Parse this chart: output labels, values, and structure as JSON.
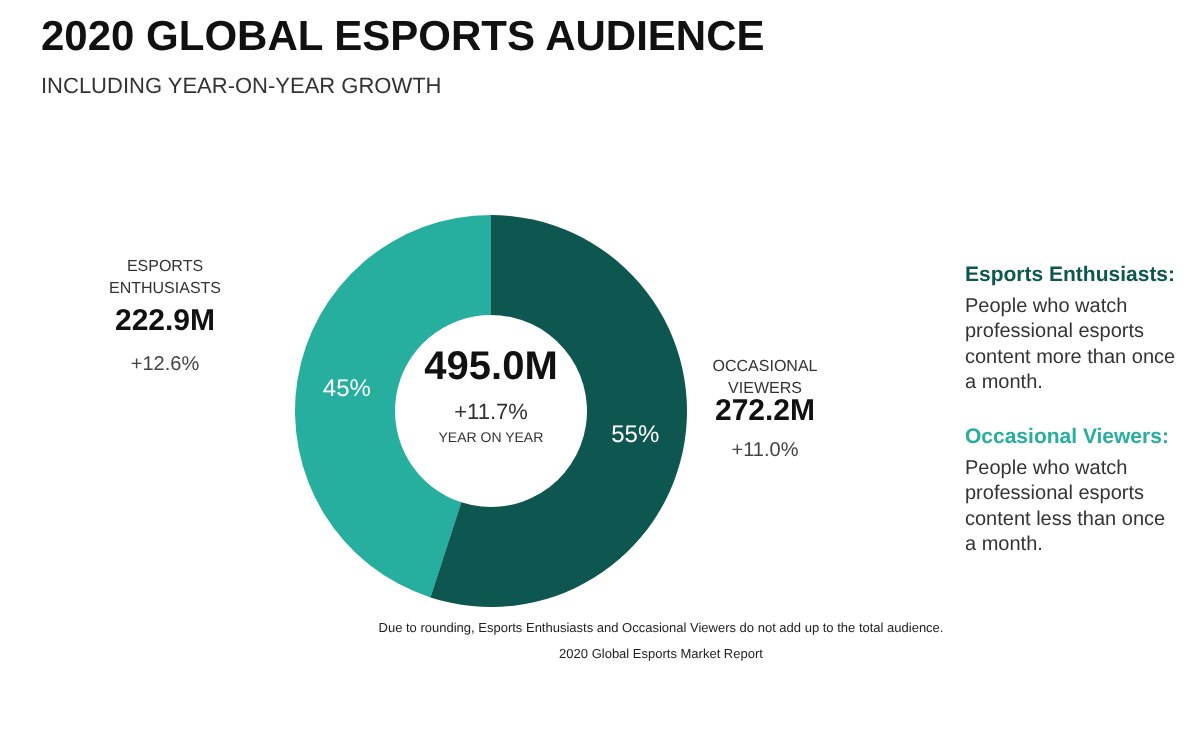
{
  "chart_data": {
    "type": "donut",
    "title": "2020 GLOBAL ESPORTS AUDIENCE",
    "subtitle": "INCLUDING YEAR-ON-YEAR GROWTH",
    "categories": [
      "ESPORTS ENTHUSIASTS",
      "OCCASIONAL VIEWERS"
    ],
    "values": [
      45,
      55
    ],
    "colors": [
      "#26ae9e",
      "#0e5750"
    ],
    "value_labels": [
      "45%",
      "55%"
    ],
    "annotations": [
      "222.9M",
      "+12.6%",
      "272.2M",
      "+11.0%",
      "495.0M",
      "+11.7%",
      "YEAR ON YEAR",
      "Esports Enthusiasts:",
      "People who watch\nprofessional esports\ncontent more than once\na month.",
      "Occasional Viewers:",
      "People who watch\nprofessional esports\ncontent less than once\na month.",
      "Due to rounding, Esports Enthusiasts and Occasional Viewers do not add up to the total audience.",
      "2020 Global Esports Market Report"
    ]
  }
}
